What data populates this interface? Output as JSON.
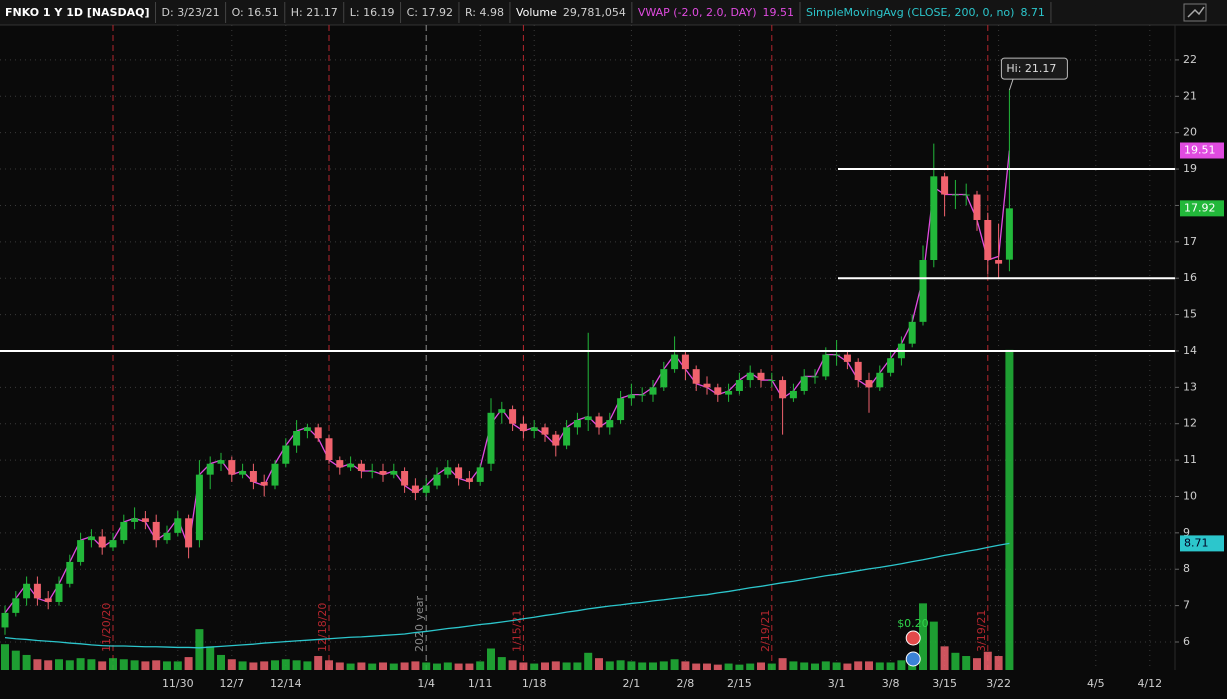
{
  "header": {
    "symbol": "FNKO 1 Y 1D [NASDAQ]",
    "date": "D: 3/23/21",
    "open": "O: 16.51",
    "high": "H: 21.17",
    "low": "L: 16.19",
    "close": "C: 17.92",
    "range": "R: 4.98"
  },
  "chart_data": {
    "type": "candlestick",
    "categories": [
      null,
      null,
      null,
      null,
      null,
      null,
      null,
      null,
      null,
      null,
      null,
      null,
      null,
      null,
      null,
      null,
      "11/30",
      null,
      null,
      null,
      null,
      "12/7",
      null,
      null,
      null,
      null,
      "12/14",
      null,
      null,
      null,
      null,
      null,
      null,
      null,
      null,
      null,
      null,
      null,
      null,
      "1/4",
      null,
      null,
      null,
      null,
      "1/11",
      null,
      null,
      null,
      null,
      "1/18",
      null,
      null,
      null,
      null,
      null,
      null,
      null,
      null,
      "2/1",
      null,
      null,
      null,
      null,
      "2/8",
      null,
      null,
      null,
      null,
      "2/15",
      null,
      null,
      null,
      null,
      null,
      null,
      null,
      null,
      "3/1",
      null,
      null,
      null,
      null,
      "3/8",
      null,
      null,
      null,
      null,
      "3/15",
      null,
      null,
      null,
      null,
      "3/22",
      null,
      null,
      null,
      null,
      null,
      null,
      null,
      null,
      "4/5",
      null,
      null,
      null,
      null,
      "4/12",
      null
    ],
    "open": [
      6.4,
      6.8,
      7.2,
      7.6,
      7.2,
      7.1,
      7.6,
      8.2,
      8.8,
      8.9,
      8.6,
      8.8,
      9.3,
      9.4,
      9.3,
      8.8,
      9.0,
      9.4,
      8.8,
      10.6,
      10.9,
      11.0,
      10.6,
      10.7,
      10.4,
      10.3,
      10.9,
      11.4,
      11.8,
      11.9,
      11.6,
      11.0,
      10.8,
      10.9,
      10.7,
      10.7,
      10.6,
      10.7,
      10.3,
      10.1,
      10.3,
      10.6,
      10.8,
      10.5,
      10.4,
      10.9,
      12.3,
      12.4,
      12.0,
      11.8,
      11.9,
      11.7,
      11.4,
      11.9,
      12.1,
      12.2,
      11.9,
      12.1,
      12.7,
      12.8,
      12.8,
      13.0,
      13.5,
      13.9,
      13.5,
      13.1,
      13.0,
      12.8,
      12.9,
      13.2,
      13.4,
      13.2,
      13.2,
      12.7,
      12.9,
      13.3,
      13.3,
      13.9,
      13.9,
      13.7,
      13.2,
      13.0,
      13.4,
      13.8,
      14.2,
      14.8,
      16.5,
      18.8,
      18.3,
      18.3,
      18.3,
      17.6,
      16.5,
      16.51,
      null,
      null,
      null,
      null,
      null,
      null,
      null,
      null,
      null,
      null,
      null,
      null,
      null,
      null
    ],
    "high": [
      7.0,
      7.4,
      7.8,
      7.8,
      7.4,
      7.8,
      8.4,
      9.0,
      9.1,
      9.1,
      9.0,
      9.5,
      9.7,
      9.6,
      9.5,
      9.2,
      9.6,
      9.5,
      11.0,
      11.1,
      11.2,
      11.1,
      10.9,
      10.9,
      10.6,
      11.0,
      11.6,
      12.1,
      12.0,
      12.0,
      11.7,
      11.1,
      11.1,
      11.0,
      10.9,
      10.9,
      10.9,
      10.8,
      10.5,
      10.5,
      10.8,
      11.0,
      10.9,
      10.7,
      10.9,
      12.7,
      12.6,
      12.5,
      12.2,
      12.1,
      12.0,
      11.8,
      12.1,
      12.3,
      14.5,
      12.3,
      12.3,
      12.9,
      13.1,
      13.0,
      13.2,
      13.7,
      14.4,
      14.0,
      13.6,
      13.3,
      13.1,
      13.1,
      13.4,
      13.6,
      13.5,
      13.4,
      13.3,
      13.1,
      13.5,
      13.5,
      14.1,
      14.3,
      14.0,
      13.8,
      13.4,
      13.6,
      14.0,
      14.4,
      15.0,
      16.9,
      19.7,
      18.9,
      18.7,
      18.6,
      18.4,
      17.8,
      17.5,
      21.17,
      null,
      null,
      null,
      null,
      null,
      null,
      null,
      null,
      null,
      null,
      null,
      null,
      null,
      null
    ],
    "low": [
      6.2,
      6.7,
      7.0,
      7.0,
      6.9,
      7.0,
      7.5,
      8.1,
      8.6,
      8.4,
      8.5,
      8.7,
      9.1,
      9.1,
      8.6,
      8.7,
      8.9,
      8.3,
      8.6,
      10.2,
      10.7,
      10.4,
      10.5,
      10.2,
      10.0,
      10.2,
      10.8,
      11.2,
      11.6,
      11.5,
      10.9,
      10.6,
      10.7,
      10.5,
      10.5,
      10.4,
      10.5,
      10.1,
      9.9,
      10.0,
      10.2,
      10.5,
      10.3,
      10.2,
      10.3,
      10.7,
      12.0,
      11.8,
      11.6,
      11.6,
      11.5,
      11.1,
      11.3,
      11.7,
      11.8,
      11.7,
      11.7,
      12.0,
      12.5,
      12.6,
      12.6,
      12.9,
      13.4,
      13.2,
      12.9,
      12.8,
      12.6,
      12.6,
      12.8,
      13.0,
      13.0,
      13.0,
      11.7,
      12.6,
      12.8,
      13.1,
      13.2,
      13.6,
      13.5,
      13.0,
      12.3,
      12.9,
      13.3,
      13.6,
      14.1,
      14.7,
      16.3,
      17.7,
      17.9,
      18.0,
      17.3,
      16.1,
      16.0,
      16.19,
      null,
      null,
      null,
      null,
      null,
      null,
      null,
      null,
      null,
      null,
      null,
      null,
      null,
      null
    ],
    "close": [
      6.8,
      7.2,
      7.6,
      7.2,
      7.1,
      7.6,
      8.2,
      8.8,
      8.9,
      8.6,
      8.8,
      9.3,
      9.4,
      9.3,
      8.8,
      9.0,
      9.4,
      8.6,
      10.6,
      10.9,
      11.0,
      10.6,
      10.7,
      10.4,
      10.3,
      10.9,
      11.4,
      11.8,
      11.9,
      11.6,
      11.0,
      10.8,
      10.9,
      10.7,
      10.7,
      10.6,
      10.7,
      10.3,
      10.1,
      10.3,
      10.6,
      10.8,
      10.5,
      10.4,
      10.8,
      12.3,
      12.4,
      12.0,
      11.8,
      11.9,
      11.7,
      11.4,
      11.9,
      12.1,
      12.2,
      11.9,
      12.1,
      12.7,
      12.8,
      12.8,
      13.0,
      13.5,
      13.9,
      13.5,
      13.1,
      13.0,
      12.8,
      12.9,
      13.2,
      13.4,
      13.2,
      13.2,
      12.7,
      12.9,
      13.3,
      13.3,
      13.9,
      13.9,
      13.7,
      13.2,
      13.0,
      13.4,
      13.8,
      14.2,
      14.8,
      16.5,
      18.8,
      18.3,
      18.3,
      18.3,
      17.6,
      16.5,
      16.4,
      17.92,
      null,
      null,
      null,
      null,
      null,
      null,
      null,
      null,
      null,
      null,
      null,
      null,
      null,
      null
    ],
    "up_color": "#22b83a",
    "down_color": "#f0626d",
    "volume": {
      "name": "Volume",
      "value_label": "29,781,054",
      "vlim": [
        0,
        60000000
      ],
      "values": [
        2400000,
        1800000,
        1400000,
        1000000,
        900000,
        1000000,
        900000,
        1100000,
        1000000,
        800000,
        1100000,
        1000000,
        900000,
        800000,
        900000,
        800000,
        800000,
        1200000,
        3800000,
        2200000,
        1400000,
        1000000,
        800000,
        700000,
        800000,
        900000,
        1000000,
        900000,
        800000,
        1300000,
        900000,
        700000,
        600000,
        700000,
        600000,
        700000,
        600000,
        700000,
        800000,
        700000,
        600000,
        700000,
        600000,
        600000,
        800000,
        2000000,
        1200000,
        900000,
        700000,
        600000,
        700000,
        800000,
        700000,
        700000,
        1600000,
        1100000,
        800000,
        900000,
        800000,
        700000,
        700000,
        800000,
        1000000,
        800000,
        600000,
        600000,
        500000,
        600000,
        500000,
        600000,
        700000,
        600000,
        1100000,
        800000,
        700000,
        600000,
        800000,
        700000,
        600000,
        800000,
        800000,
        700000,
        700000,
        900000,
        1500000,
        6200000,
        4500000,
        2200000,
        1600000,
        1300000,
        1100000,
        1700000,
        1300000,
        29781054,
        null,
        null,
        null,
        null,
        null,
        null,
        null,
        null,
        null,
        null,
        null,
        null,
        null,
        null
      ]
    },
    "series": [
      {
        "name": "VWAP (-2.0, 2.0, DAY)",
        "color": "#e04be0",
        "values": [
          6.8,
          7.2,
          7.6,
          7.2,
          7.1,
          7.6,
          8.2,
          8.8,
          8.9,
          8.6,
          8.8,
          9.3,
          9.4,
          9.3,
          8.8,
          9.0,
          9.4,
          8.6,
          10.6,
          10.9,
          11.0,
          10.6,
          10.7,
          10.4,
          10.3,
          10.9,
          11.4,
          11.8,
          11.9,
          11.6,
          11.0,
          10.8,
          10.9,
          10.7,
          10.7,
          10.6,
          10.7,
          10.3,
          10.1,
          10.3,
          10.6,
          10.8,
          10.5,
          10.4,
          10.8,
          12.0,
          12.4,
          12.0,
          11.8,
          11.9,
          11.7,
          11.4,
          11.9,
          12.1,
          12.2,
          11.9,
          12.1,
          12.7,
          12.8,
          12.8,
          13.0,
          13.5,
          13.9,
          13.5,
          13.1,
          13.0,
          12.8,
          12.9,
          13.2,
          13.4,
          13.2,
          13.2,
          12.7,
          12.9,
          13.3,
          13.3,
          13.9,
          13.9,
          13.7,
          13.2,
          13.0,
          13.4,
          13.8,
          14.2,
          14.8,
          16.0,
          18.5,
          18.3,
          18.3,
          18.3,
          17.6,
          16.5,
          16.6,
          19.51,
          null,
          null,
          null,
          null,
          null,
          null,
          null,
          null,
          null,
          null,
          null,
          null,
          null,
          null
        ]
      },
      {
        "name": "SimpleMovingAvg (CLOSE, 200, 0, no)",
        "color": "#2cc6cc",
        "values": [
          6.12,
          6.09,
          6.07,
          6.04,
          6.02,
          6.0,
          5.97,
          5.95,
          5.92,
          5.9,
          5.89,
          5.89,
          5.88,
          5.87,
          5.87,
          5.86,
          5.85,
          5.85,
          5.84,
          5.86,
          5.88,
          5.9,
          5.92,
          5.94,
          5.97,
          5.99,
          6.01,
          6.03,
          6.05,
          6.07,
          6.09,
          6.11,
          6.13,
          6.14,
          6.16,
          6.18,
          6.2,
          6.22,
          6.26,
          6.29,
          6.33,
          6.37,
          6.4,
          6.44,
          6.48,
          6.51,
          6.55,
          6.59,
          6.64,
          6.68,
          6.73,
          6.77,
          6.82,
          6.86,
          6.91,
          6.95,
          6.99,
          7.02,
          7.06,
          7.09,
          7.13,
          7.16,
          7.2,
          7.23,
          7.27,
          7.3,
          7.35,
          7.39,
          7.44,
          7.49,
          7.53,
          7.58,
          7.63,
          7.67,
          7.72,
          7.77,
          7.82,
          7.86,
          7.91,
          7.96,
          8.01,
          8.05,
          8.1,
          8.15,
          8.21,
          8.26,
          8.32,
          8.38,
          8.43,
          8.49,
          8.54,
          8.6,
          8.66,
          8.71,
          null,
          null,
          null,
          null,
          null,
          null,
          null,
          null,
          null,
          null,
          null,
          null,
          null,
          null
        ]
      }
    ],
    "ylim": [
      5.23,
      22.96
    ],
    "yticks": [
      6,
      7,
      8,
      9,
      10,
      11,
      12,
      13,
      14,
      15,
      16,
      17,
      18,
      19,
      20,
      21,
      22
    ],
    "grid": true,
    "hlines": [
      19,
      16,
      14
    ],
    "events": [
      {
        "label": "11/20/20",
        "at": 10,
        "color": "#b3262e"
      },
      {
        "label": "12/18/20",
        "at": 30,
        "color": "#b3262e"
      },
      {
        "label": "2020 year",
        "at": 39,
        "color": "#8a8a8a"
      },
      {
        "label": "1/15/21",
        "at": 48,
        "color": "#b3262e"
      },
      {
        "label": "2/19/21",
        "at": 71,
        "color": "#b3262e"
      },
      {
        "label": "3/19/21",
        "at": 91,
        "color": "#b3262e"
      }
    ],
    "high_annotation": "Hi: 21.17",
    "dividend_label": "$0.20"
  }
}
